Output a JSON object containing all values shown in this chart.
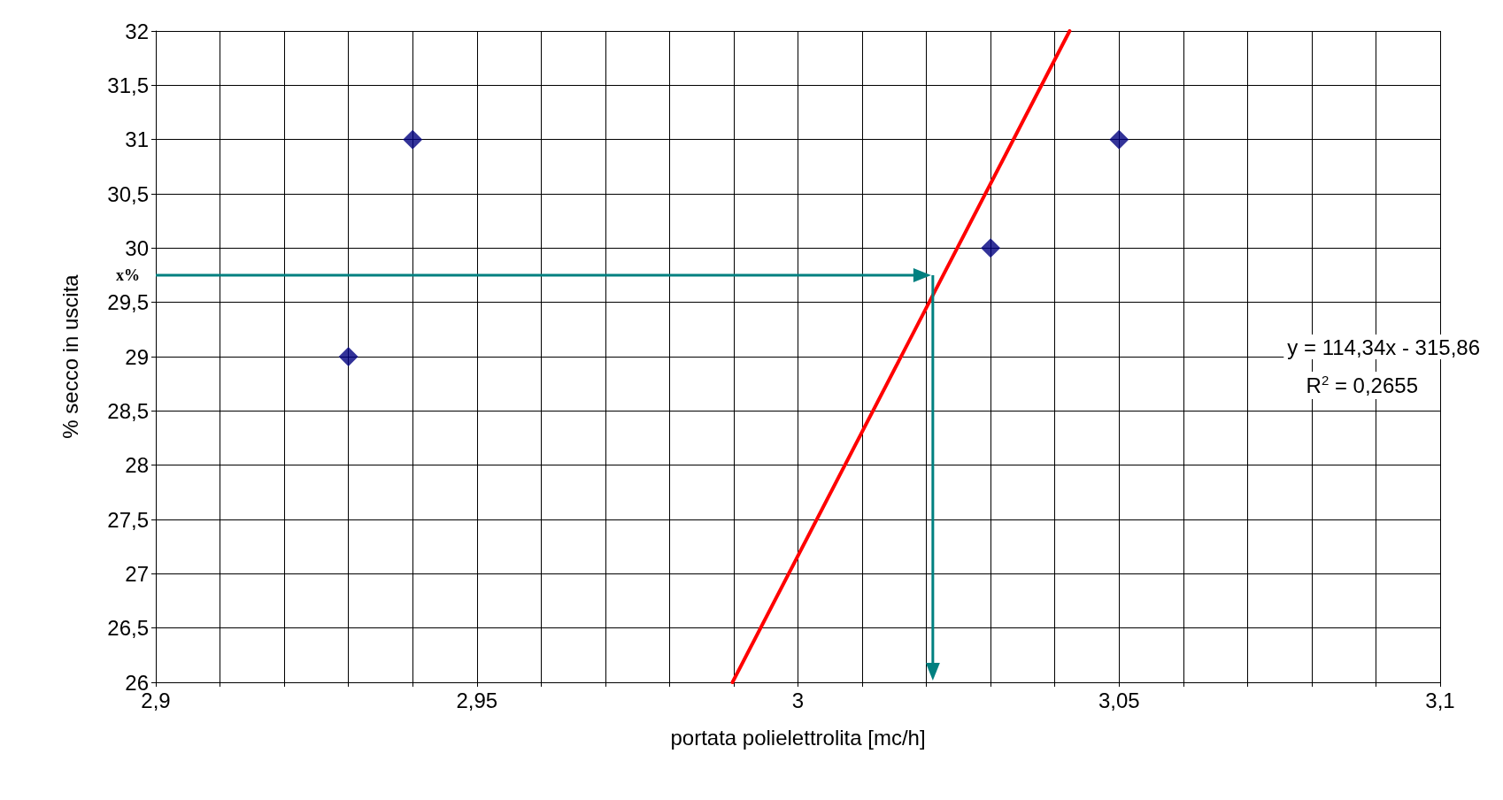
{
  "chart_data": {
    "type": "scatter",
    "xlabel": "portata polielettrolita [mc/h]",
    "ylabel": "% secco in uscita",
    "xlim": [
      2.9,
      3.1
    ],
    "xticks": [
      {
        "value": 2.9,
        "label": "2,9"
      },
      {
        "value": 2.91,
        "label": null
      },
      {
        "value": 2.92,
        "label": null
      },
      {
        "value": 2.93,
        "label": null
      },
      {
        "value": 2.94,
        "label": null
      },
      {
        "value": 2.95,
        "label": "2,95"
      },
      {
        "value": 2.96,
        "label": null
      },
      {
        "value": 2.97,
        "label": null
      },
      {
        "value": 2.98,
        "label": null
      },
      {
        "value": 2.99,
        "label": null
      },
      {
        "value": 3,
        "label": "3"
      },
      {
        "value": 3.01,
        "label": null
      },
      {
        "value": 3.02,
        "label": null
      },
      {
        "value": 3.03,
        "label": null
      },
      {
        "value": 3.04,
        "label": null
      },
      {
        "value": 3.05,
        "label": "3,05"
      },
      {
        "value": 3.06,
        "label": null
      },
      {
        "value": 3.07,
        "label": null
      },
      {
        "value": 3.08,
        "label": null
      },
      {
        "value": 3.09,
        "label": null
      },
      {
        "value": 3.1,
        "label": "3,1"
      }
    ],
    "ylim": [
      26,
      32
    ],
    "yticks": [
      26,
      {
        "value": 26.5,
        "label": "26,5"
      },
      27,
      {
        "value": 27.5,
        "label": "27,5"
      },
      28,
      {
        "value": 28.5,
        "label": "28,5"
      },
      29,
      {
        "value": 29.5,
        "label": "29,5"
      },
      30,
      {
        "value": 30.5,
        "label": "30,5"
      },
      31,
      {
        "value": 31.5,
        "label": "31,5"
      },
      32
    ],
    "grid": true,
    "marker": "diamond",
    "series": [
      {
        "color": "#000080",
        "x": [
          2.93,
          2.94,
          3.03,
          3.05
        ],
        "values": [
          29,
          31,
          30,
          31
        ]
      },
      {
        "type": "line",
        "color": "#ff0000",
        "marker": "none",
        "line_style": "solid",
        "x": [
          2.9898,
          3.0423
        ],
        "values": [
          26,
          32
        ]
      }
    ],
    "ref_lines": [
      {
        "axis": "y",
        "value": 29.75,
        "label": "x%",
        "color": "#008080",
        "line_style": "solid"
      },
      {
        "axis": "x",
        "value": 3.021,
        "color": "#008080",
        "line_style": "solid"
      }
    ],
    "annotations": [
      "y = 114,34x - 315,86",
      "R$^{2}$ = 0,2655"
    ]
  }
}
